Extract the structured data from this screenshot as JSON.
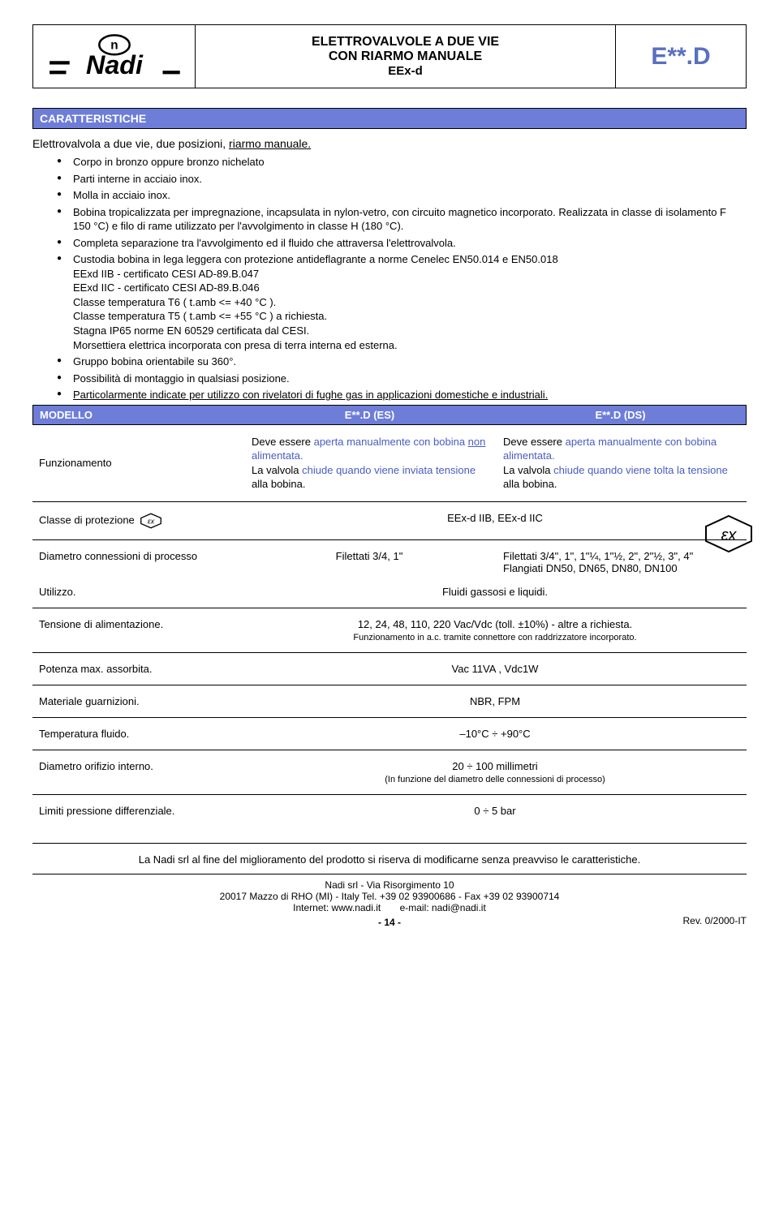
{
  "header": {
    "title_l1": "ELETTROVALVOLE A DUE VIE",
    "title_l2": "CON RIARMO MANUALE",
    "title_l3": "EEx-d",
    "code": "E**.D",
    "logo_text": "Nadi"
  },
  "sections": {
    "caratteristiche": "CARATTERISTICHE",
    "modello": "MODELLO"
  },
  "intro_pre": "Elettrovalvola a due vie, due posizioni, ",
  "intro_under": "riarmo manuale.",
  "bullets": [
    "Corpo in bronzo oppure bronzo nichelato",
    "Parti interne in acciaio inox.",
    "Molla in acciaio inox.",
    "Bobina tropicalizzata per impregnazione, incapsulata in nylon-vetro, con circuito magnetico incorporato. Realizzata in classe di isolamento F 150 °C) e filo di rame utilizzato per l'avvolgimento in classe H (180 °C).",
    "Completa separazione tra l'avvolgimento ed il fluido che attraversa l'elettrovalvola.",
    "Custodia bobina in lega leggera con protezione antideflagrante a norme Cenelec EN50.014 e EN50.018\nEExd IIB - certificato CESI AD-89.B.047\nEExd IIC - certificato CESI AD-89.B.046\nClasse temperatura T6 ( t.amb <= +40 °C ).\nClasse temperatura T5 ( t.amb <= +55 °C ) a richiesta.\nStagna IP65 norme EN 60529 certificata dal CESI.\nMorsettiera elettrica incorporata con presa di terra interna ed esterna.",
    "Gruppo bobina orientabile su 360°.",
    "Possibilità di montaggio in qualsiasi posizione."
  ],
  "bullet_last_pre": "",
  "bullet_last_under": "Particolarmente indicate per utilizzo con rivelatori di fughe gas in applicazioni domestiche e industriali.",
  "modello_h": {
    "c1": "E**.D (ES)",
    "c2": "E**.D (DS)"
  },
  "func": {
    "label": "Funzionamento",
    "es_1": "Deve essere ",
    "es_2": "aperta manualmente con bobina ",
    "es_2b": "non",
    "es_2c": " alimentata.",
    "es_3": "La valvola ",
    "es_4": "chiude quando viene inviata tensione",
    "es_5": " alla bobina.",
    "ds_1": "Deve essere ",
    "ds_2": "aperta manualmente con bobina alimentata.",
    "ds_3": "La valvola ",
    "ds_4": "chiude quando viene tolta la tensione",
    "ds_5": " alla bobina."
  },
  "specs": [
    {
      "label": "Classe di protezione",
      "val": "EEx-d IIB, EEx-d IIC",
      "ex": true
    },
    {
      "label": "Diametro connessioni di processo",
      "two": {
        "a": "Filettati 3/4, 1\"",
        "b": "Filettati 3/4\", 1\", 1\"¼, 1\"½, 2\", 2\"½, 3\", 4\"\nFlangiati DN50, DN65, DN80, DN100"
      }
    },
    {
      "label": "Utilizzo.",
      "val": "Fluidi gassosi e liquidi.",
      "noborder": true
    },
    {
      "label": "Tensione di alimentazione.",
      "val": "12, 24, 48, 110, 220 Vac/Vdc (toll. ±10%) - altre a richiesta.",
      "sub": "Funzionamento in a.c. tramite connettore con raddrizzatore incorporato."
    },
    {
      "label": "Potenza max. assorbita.",
      "val": "Vac 11VA , Vdc1W"
    },
    {
      "label": "Materiale guarnizioni.",
      "val": "NBR, FPM"
    },
    {
      "label": "Temperatura fluido.",
      "val": "–10°C ÷ +90°C"
    },
    {
      "label": "Diametro orifizio interno.",
      "val": "20 ÷ 100 millimetri",
      "sub": "(In funzione del diametro delle connessioni di processo)"
    },
    {
      "label": "Limiti pressione differenziale.",
      "val": "0 ÷ 5 bar"
    }
  ],
  "disclaimer": "La Nadi srl al fine del miglioramento del prodotto si riserva di modificarne senza preavviso le caratteristiche.",
  "footer": {
    "l1": "Nadi srl - Via Risorgimento 10",
    "l2": "20017 Mazzo di RHO (MI) - Italy Tel. +39 02 93900686 - Fax +39 02 93900714",
    "l3a": "Internet: www.nadi.it",
    "l3b": "e-mail: nadi@nadi.it",
    "rev": "Rev. 0/2000-IT",
    "page": "- 14 -"
  }
}
